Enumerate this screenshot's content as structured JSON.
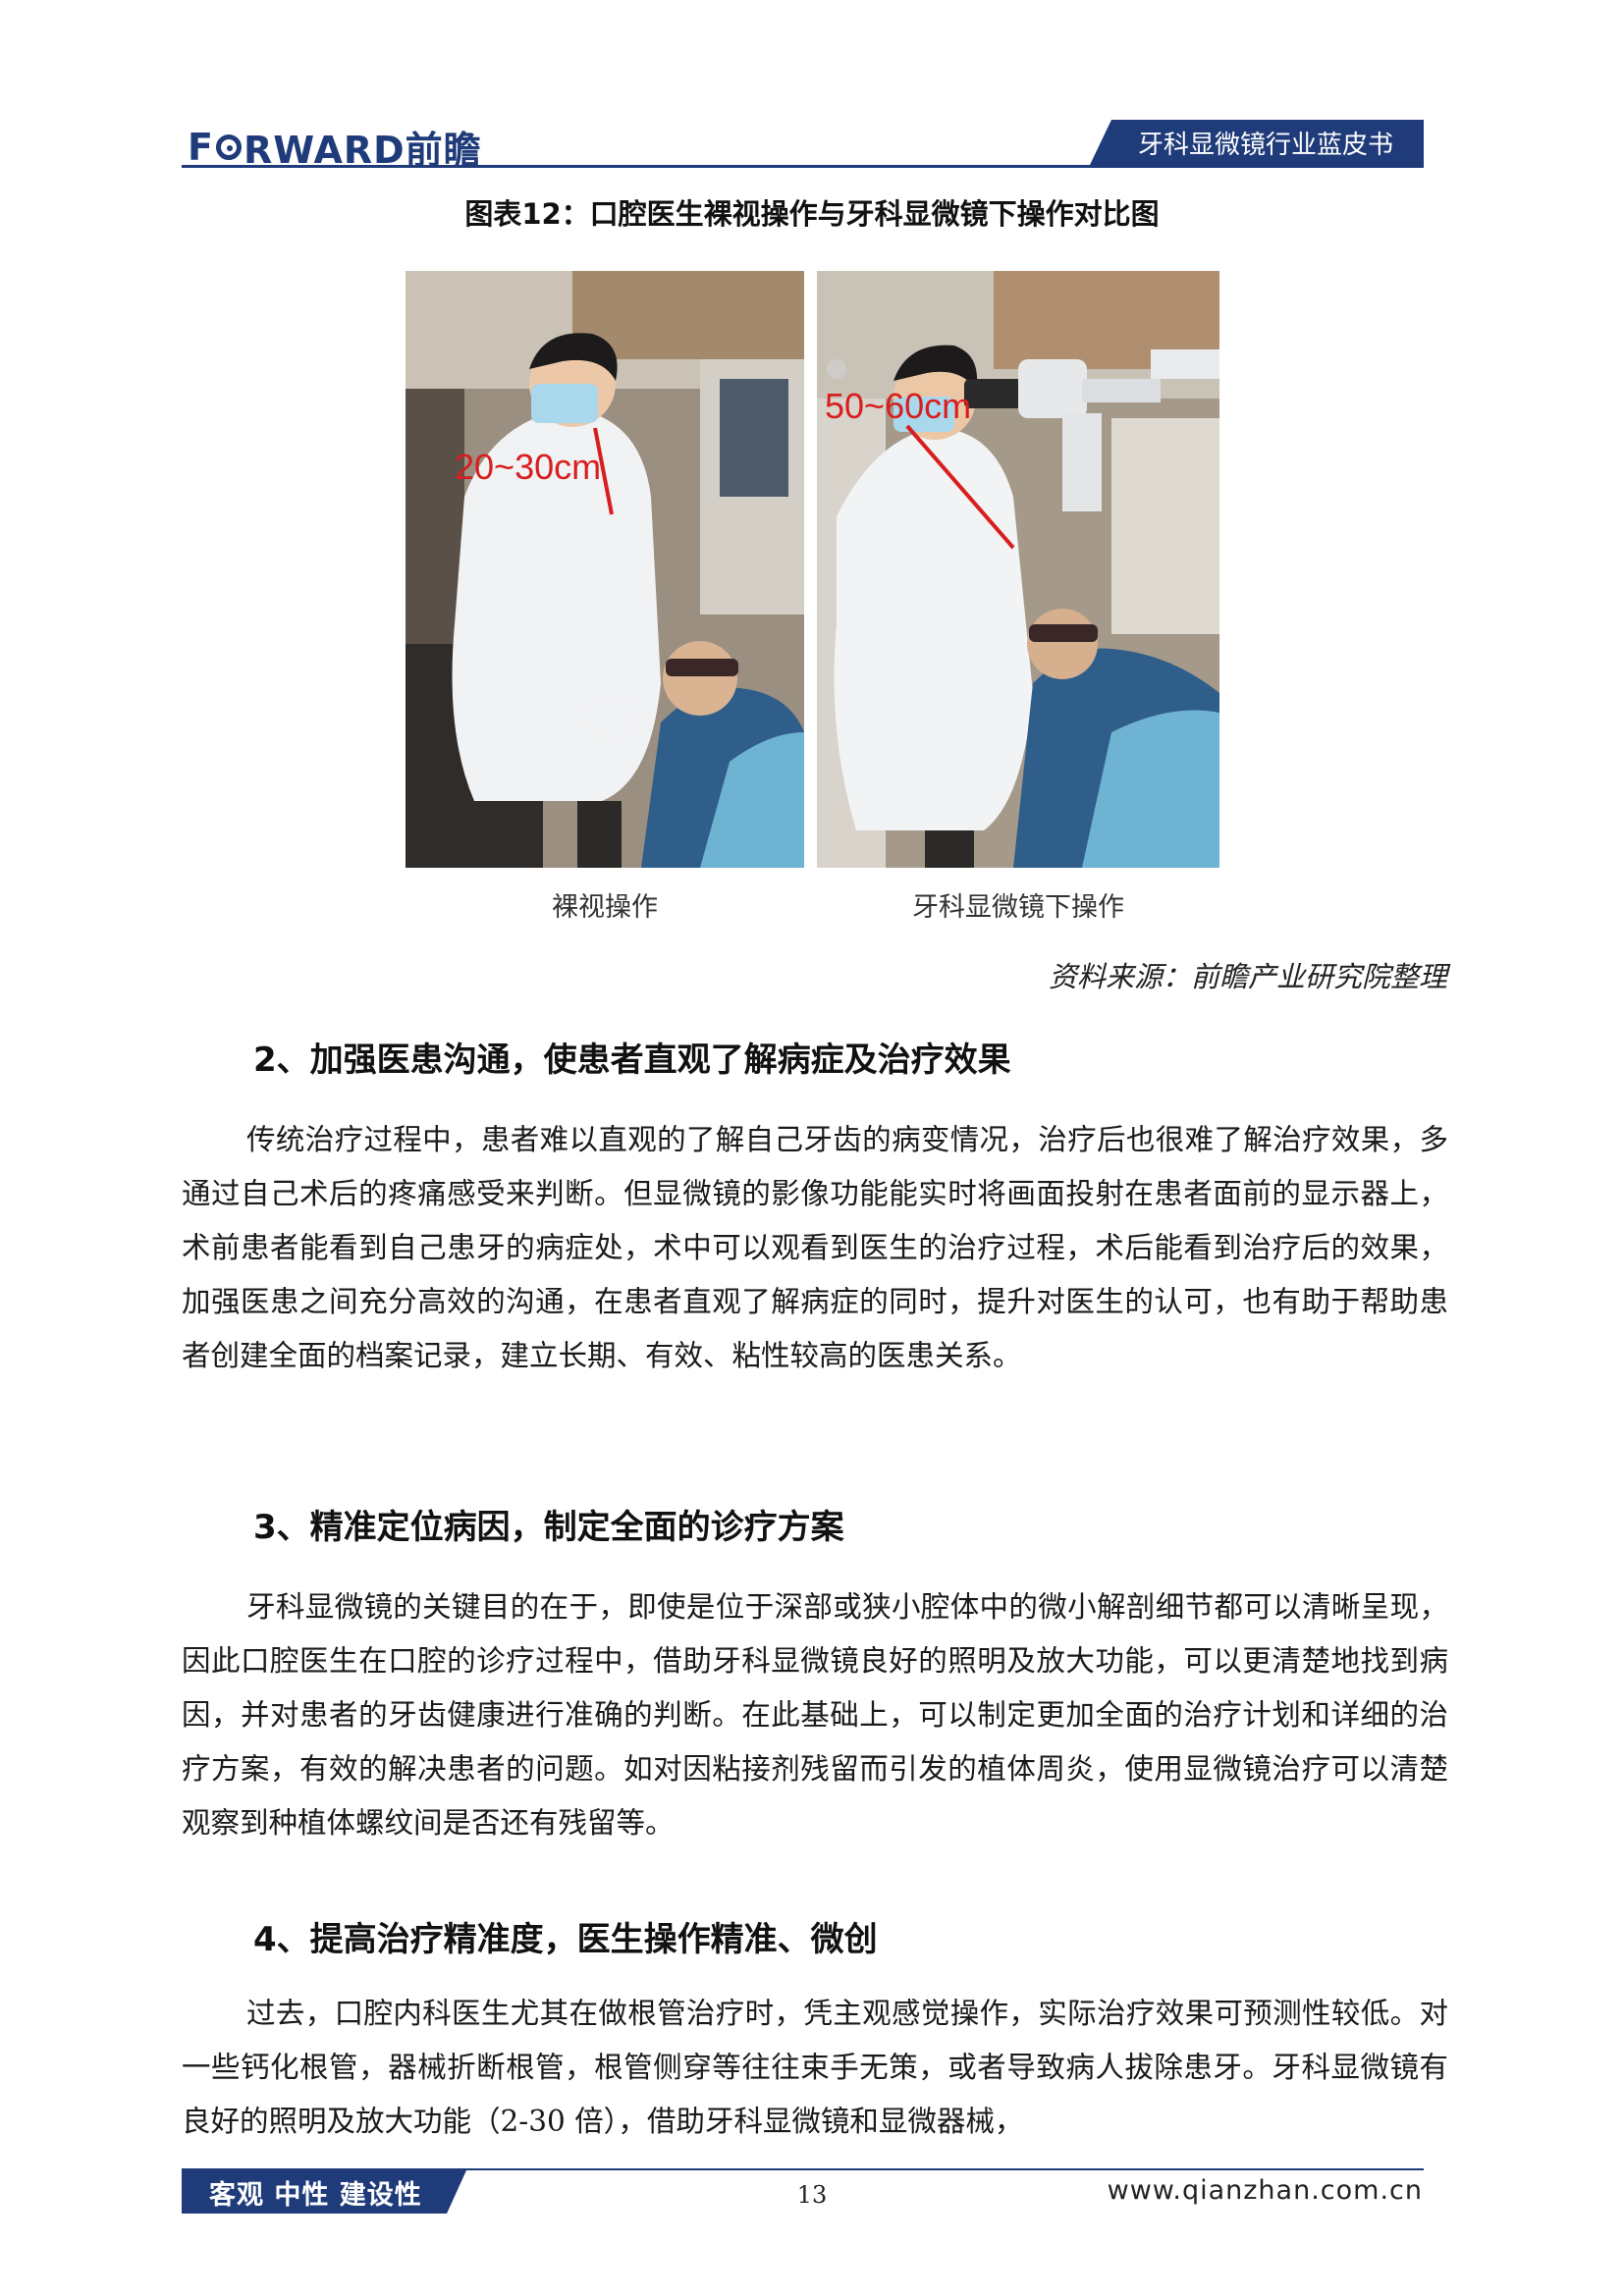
{
  "header": {
    "logo_text_left": "F",
    "logo_text_right": "RWARD前瞻",
    "report_title": "牙科显微镜行业蓝皮书"
  },
  "figure": {
    "title": "图表12：口腔医生裸视操作与牙科显微镜下操作对比图",
    "left_photo": {
      "distance_label": "20~30cm",
      "caption": "裸视操作"
    },
    "right_photo": {
      "distance_label": "50~60cm",
      "caption": "牙科显微镜下操作"
    },
    "source": "资料来源：前瞻产业研究院整理"
  },
  "sections": [
    {
      "heading": "2、加强医患沟通，使患者直观了解病症及治疗效果",
      "paragraph": "传统治疗过程中，患者难以直观的了解自己牙齿的病变情况，治疗后也很难了解治疗效果，多通过自己术后的疼痛感受来判断。但显微镜的影像功能能实时将画面投射在患者面前的显示器上，术前患者能看到自己患牙的病症处，术中可以观看到医生的治疗过程，术后能看到治疗后的效果，加强医患之间充分高效的沟通，在患者直观了解病症的同时，提升对医生的认可，也有助于帮助患者创建全面的档案记录，建立长期、有效、粘性较高的医患关系。"
    },
    {
      "heading": "3、精准定位病因，制定全面的诊疗方案",
      "paragraph": "牙科显微镜的关键目的在于，即使是位于深部或狭小腔体中的微小解剖细节都可以清晰呈现，因此口腔医生在口腔的诊疗过程中，借助牙科显微镜良好的照明及放大功能，可以更清楚地找到病因，并对患者的牙齿健康进行准确的判断。在此基础上，可以制定更加全面的治疗计划和详细的治疗方案，有效的解决患者的问题。如对因粘接剂残留而引发的植体周炎，使用显微镜治疗可以清楚观察到种植体螺纹间是否还有残留等。"
    },
    {
      "heading": "4、提高治疗精准度，医生操作精准、微创",
      "paragraph": "过去，口腔内科医生尤其在做根管治疗时，凭主观感觉操作，实际治疗效果可预测性较低。对一些钙化根管，器械折断根管，根管侧穿等往往束手无策，或者导致病人拔除患牙。牙科显微镜有良好的照明及放大功能（2-30 倍），借助牙科显微镜和显微器械，"
    }
  ],
  "footer": {
    "slogan": "客观 中性 建设性",
    "page_number": "13",
    "url": "www.qianzhan.com.cn"
  },
  "colors": {
    "brand_blue": "#1f3b7a",
    "distance_label_red": "#d81e1e"
  }
}
